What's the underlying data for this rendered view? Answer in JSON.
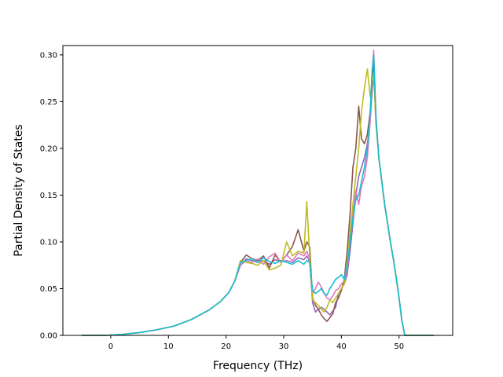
{
  "chart_data": {
    "type": "line",
    "title": "",
    "xlabel": "Frequency (THz)",
    "ylabel": "Partial Density of States",
    "xlim": [
      -8.3,
      59.3
    ],
    "ylim": [
      0.0,
      0.31
    ],
    "xticks": [
      0,
      10,
      20,
      30,
      40,
      50
    ],
    "yticks": [
      0.0,
      0.05,
      0.1,
      0.15,
      0.2,
      0.25,
      0.3
    ],
    "ytick_labels": [
      "0.00",
      "0.05",
      "0.10",
      "0.15",
      "0.20",
      "0.25",
      "0.30"
    ],
    "grid": false,
    "legend": "none",
    "x": [
      -5,
      -1,
      2,
      5,
      8,
      11,
      14,
      17,
      19,
      20.5,
      21.5,
      22.5,
      23.5,
      24.5,
      25.5,
      26.5,
      27.5,
      28.5,
      29.5,
      30.5,
      31.5,
      32.5,
      33.5,
      34,
      34.5,
      35,
      35.5,
      36,
      36.5,
      37,
      37.5,
      38,
      38.5,
      39,
      39.5,
      40,
      40.5,
      41,
      41.5,
      42,
      42.5,
      43,
      43.5,
      44,
      44.5,
      45,
      45.3,
      45.6,
      46,
      46.5,
      47,
      47.5,
      48,
      48.5,
      49,
      49.5,
      50,
      50.5,
      51,
      51.5,
      53,
      56
    ],
    "series": [
      {
        "color": "#9467bd",
        "values": [
          0,
          0,
          0.001,
          0.003,
          0.006,
          0.01,
          0.017,
          0.027,
          0.036,
          0.046,
          0.058,
          0.075,
          0.082,
          0.08,
          0.078,
          0.08,
          0.076,
          0.081,
          0.079,
          0.08,
          0.078,
          0.083,
          0.081,
          0.085,
          0.079,
          0.035,
          0.025,
          0.028,
          0.03,
          0.028,
          0.025,
          0.022,
          0.026,
          0.03,
          0.045,
          0.05,
          0.055,
          0.065,
          0.09,
          0.12,
          0.15,
          0.17,
          0.18,
          0.19,
          0.205,
          0.23,
          0.26,
          0.28,
          0.23,
          0.19,
          0.165,
          0.14,
          0.12,
          0.1,
          0.082,
          0.062,
          0.04,
          0.015,
          0,
          0,
          0,
          0
        ]
      },
      {
        "color": "#8c564b",
        "values": [
          0,
          0,
          0.001,
          0.003,
          0.006,
          0.01,
          0.017,
          0.027,
          0.036,
          0.046,
          0.058,
          0.078,
          0.086,
          0.082,
          0.08,
          0.085,
          0.072,
          0.086,
          0.078,
          0.086,
          0.095,
          0.113,
          0.09,
          0.1,
          0.095,
          0.04,
          0.032,
          0.028,
          0.022,
          0.018,
          0.015,
          0.019,
          0.023,
          0.035,
          0.04,
          0.048,
          0.06,
          0.09,
          0.13,
          0.18,
          0.2,
          0.245,
          0.21,
          0.205,
          0.215,
          0.24,
          0.27,
          0.295,
          0.23,
          0.19,
          0.165,
          0.14,
          0.12,
          0.1,
          0.082,
          0.062,
          0.04,
          0.015,
          0,
          0,
          0,
          0
        ]
      },
      {
        "color": "#e377c2",
        "values": [
          0,
          0,
          0.001,
          0.003,
          0.006,
          0.01,
          0.017,
          0.027,
          0.036,
          0.046,
          0.058,
          0.075,
          0.08,
          0.078,
          0.082,
          0.076,
          0.084,
          0.088,
          0.078,
          0.086,
          0.08,
          0.088,
          0.085,
          0.09,
          0.082,
          0.045,
          0.05,
          0.057,
          0.052,
          0.045,
          0.04,
          0.038,
          0.042,
          0.048,
          0.05,
          0.055,
          0.058,
          0.07,
          0.1,
          0.13,
          0.155,
          0.14,
          0.16,
          0.17,
          0.19,
          0.23,
          0.28,
          0.305,
          0.235,
          0.19,
          0.165,
          0.14,
          0.12,
          0.1,
          0.082,
          0.062,
          0.04,
          0.015,
          0,
          0,
          0,
          0
        ]
      },
      {
        "color": "#bcbd22",
        "values": [
          0,
          0,
          0.001,
          0.003,
          0.006,
          0.01,
          0.017,
          0.027,
          0.036,
          0.046,
          0.058,
          0.08,
          0.078,
          0.077,
          0.075,
          0.08,
          0.07,
          0.072,
          0.075,
          0.1,
          0.085,
          0.09,
          0.088,
          0.143,
          0.085,
          0.038,
          0.035,
          0.032,
          0.028,
          0.025,
          0.03,
          0.038,
          0.035,
          0.04,
          0.045,
          0.05,
          0.055,
          0.08,
          0.11,
          0.14,
          0.17,
          0.2,
          0.24,
          0.265,
          0.285,
          0.255,
          0.27,
          0.28,
          0.225,
          0.19,
          0.165,
          0.14,
          0.12,
          0.1,
          0.082,
          0.062,
          0.04,
          0.015,
          0,
          0,
          0,
          0
        ]
      },
      {
        "color": "#17becf",
        "values": [
          0,
          0,
          0.001,
          0.003,
          0.006,
          0.01,
          0.017,
          0.027,
          0.036,
          0.046,
          0.058,
          0.078,
          0.08,
          0.082,
          0.078,
          0.083,
          0.079,
          0.077,
          0.08,
          0.078,
          0.076,
          0.08,
          0.076,
          0.08,
          0.078,
          0.048,
          0.045,
          0.047,
          0.05,
          0.045,
          0.043,
          0.05,
          0.055,
          0.06,
          0.062,
          0.065,
          0.06,
          0.075,
          0.1,
          0.125,
          0.145,
          0.15,
          0.165,
          0.18,
          0.2,
          0.24,
          0.28,
          0.3,
          0.23,
          0.19,
          0.165,
          0.14,
          0.12,
          0.1,
          0.082,
          0.062,
          0.04,
          0.015,
          0,
          0,
          0,
          0
        ]
      }
    ]
  }
}
